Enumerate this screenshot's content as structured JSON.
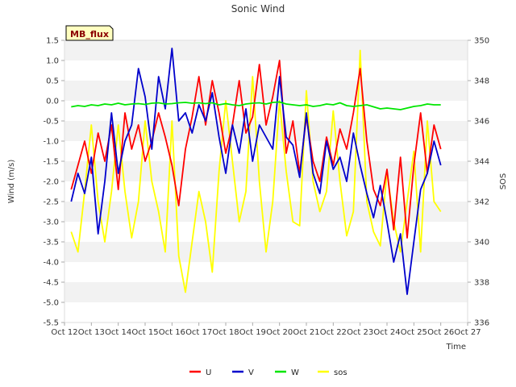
{
  "chart_data": {
    "type": "line",
    "title": "Sonic Wind",
    "badge": "MB_flux",
    "xlabel": "Time",
    "ylabel": "Wind (m/s)",
    "y2label": "SOS",
    "x_ticks": [
      "Oct 12",
      "Oct 13",
      "Oct 14",
      "Oct 15",
      "Oct 16",
      "Oct 17",
      "Oct 18",
      "Oct 19",
      "Oct 20",
      "Oct 21",
      "Oct 22",
      "Oct 23",
      "Oct 24",
      "Oct 25",
      "Oct 26",
      "Oct 27"
    ],
    "y_ticks": [
      "-5.5",
      "-5.0",
      "-4.5",
      "-4.0",
      "-3.5",
      "-3.0",
      "-2.5",
      "-2.0",
      "-1.5",
      "-1.0",
      "-0.5",
      "0.0",
      "0.5",
      "1.0",
      "1.5"
    ],
    "y2_ticks": [
      "336",
      "338",
      "340",
      "342",
      "344",
      "346",
      "348",
      "350"
    ],
    "ylim": [
      -5.5,
      1.5
    ],
    "y2lim": [
      336,
      350
    ],
    "xlim": [
      12,
      27
    ],
    "grid": true,
    "legend_position": "bottom",
    "series": [
      {
        "name": "U",
        "axis": "left",
        "color": "#ff0000",
        "x": [
          12.25,
          12.5,
          12.75,
          13.0,
          13.25,
          13.5,
          13.75,
          14.0,
          14.25,
          14.5,
          14.75,
          15.0,
          15.25,
          15.5,
          15.75,
          16.0,
          16.25,
          16.5,
          16.75,
          17.0,
          17.25,
          17.5,
          17.75,
          18.0,
          18.25,
          18.5,
          18.75,
          19.0,
          19.25,
          19.5,
          19.75,
          20.0,
          20.25,
          20.5,
          20.75,
          21.0,
          21.25,
          21.5,
          21.75,
          22.0,
          22.25,
          22.5,
          22.75,
          23.0,
          23.25,
          23.5,
          23.75,
          24.0,
          24.25,
          24.5,
          24.75,
          25.0,
          25.25,
          25.5,
          25.75,
          26.0
        ],
        "values": [
          -2.2,
          -1.6,
          -1.0,
          -1.8,
          -0.8,
          -1.5,
          -0.6,
          -2.2,
          -0.3,
          -1.2,
          -0.6,
          -1.5,
          -1.0,
          -0.3,
          -0.9,
          -1.6,
          -2.6,
          -1.2,
          -0.4,
          0.6,
          -0.6,
          0.5,
          -0.3,
          -1.3,
          -0.6,
          0.5,
          -0.8,
          -0.4,
          0.9,
          -0.6,
          0.1,
          1.0,
          -1.3,
          -0.5,
          -1.8,
          -0.4,
          -1.5,
          -2.0,
          -0.9,
          -1.6,
          -0.7,
          -1.2,
          -0.3,
          0.8,
          -1.0,
          -2.2,
          -2.6,
          -1.7,
          -3.2,
          -1.4,
          -3.4,
          -1.6,
          -0.3,
          -1.8,
          -0.6,
          -1.2
        ]
      },
      {
        "name": "V",
        "axis": "left",
        "color": "#0000cc",
        "x": [
          12.25,
          12.5,
          12.75,
          13.0,
          13.25,
          13.5,
          13.75,
          14.0,
          14.25,
          14.5,
          14.75,
          15.0,
          15.25,
          15.5,
          15.75,
          16.0,
          16.25,
          16.5,
          16.75,
          17.0,
          17.25,
          17.5,
          17.75,
          18.0,
          18.25,
          18.5,
          18.75,
          19.0,
          19.25,
          19.5,
          19.75,
          20.0,
          20.25,
          20.5,
          20.75,
          21.0,
          21.25,
          21.5,
          21.75,
          22.0,
          22.25,
          22.5,
          22.75,
          23.0,
          23.25,
          23.5,
          23.75,
          24.0,
          24.25,
          24.5,
          24.75,
          25.0,
          25.25,
          25.5,
          25.75,
          26.0
        ],
        "values": [
          -2.5,
          -1.8,
          -2.3,
          -1.4,
          -3.3,
          -2.0,
          -0.3,
          -1.8,
          -1.0,
          -0.6,
          0.8,
          0.1,
          -1.2,
          0.6,
          -0.2,
          1.3,
          -0.5,
          -0.3,
          -0.8,
          -0.1,
          -0.5,
          0.2,
          -0.9,
          -1.8,
          -0.6,
          -1.3,
          -0.2,
          -1.5,
          -0.6,
          -0.9,
          -1.2,
          0.6,
          -0.9,
          -1.1,
          -1.9,
          -0.3,
          -1.8,
          -2.3,
          -1.0,
          -1.7,
          -1.4,
          -2.0,
          -0.8,
          -1.6,
          -2.3,
          -2.9,
          -2.1,
          -3.0,
          -4.0,
          -3.3,
          -4.8,
          -3.5,
          -2.2,
          -1.8,
          -1.0,
          -1.6
        ]
      },
      {
        "name": "W",
        "axis": "left",
        "color": "#00e600",
        "x": [
          12.25,
          12.5,
          12.75,
          13.0,
          13.25,
          13.5,
          13.75,
          14.0,
          14.25,
          14.5,
          14.75,
          15.0,
          15.25,
          15.5,
          15.75,
          16.0,
          16.25,
          16.5,
          16.75,
          17.0,
          17.25,
          17.5,
          17.75,
          18.0,
          18.25,
          18.5,
          18.75,
          19.0,
          19.25,
          19.5,
          19.75,
          20.0,
          20.25,
          20.5,
          20.75,
          21.0,
          21.25,
          21.5,
          21.75,
          22.0,
          22.25,
          22.5,
          22.75,
          23.0,
          23.25,
          23.5,
          23.75,
          24.0,
          24.25,
          24.5,
          24.75,
          25.0,
          25.25,
          25.5,
          25.75,
          26.0
        ],
        "values": [
          -0.15,
          -0.12,
          -0.14,
          -0.1,
          -0.12,
          -0.08,
          -0.1,
          -0.06,
          -0.1,
          -0.08,
          -0.07,
          -0.09,
          -0.06,
          -0.05,
          -0.08,
          -0.07,
          -0.05,
          -0.04,
          -0.06,
          -0.05,
          -0.07,
          -0.05,
          -0.1,
          -0.07,
          -0.1,
          -0.12,
          -0.08,
          -0.06,
          -0.05,
          -0.08,
          -0.04,
          -0.03,
          -0.08,
          -0.1,
          -0.12,
          -0.1,
          -0.14,
          -0.12,
          -0.08,
          -0.1,
          -0.05,
          -0.12,
          -0.14,
          -0.12,
          -0.1,
          -0.15,
          -0.2,
          -0.18,
          -0.2,
          -0.22,
          -0.18,
          -0.14,
          -0.12,
          -0.08,
          -0.1,
          -0.1
        ]
      },
      {
        "name": "sos",
        "axis": "right",
        "color": "#ffff00",
        "x": [
          12.25,
          12.5,
          12.75,
          13.0,
          13.25,
          13.5,
          13.75,
          14.0,
          14.25,
          14.5,
          14.75,
          15.0,
          15.25,
          15.5,
          15.75,
          16.0,
          16.25,
          16.5,
          16.75,
          17.0,
          17.25,
          17.5,
          17.75,
          18.0,
          18.25,
          18.5,
          18.75,
          19.0,
          19.25,
          19.5,
          19.75,
          20.0,
          20.25,
          20.5,
          20.75,
          21.0,
          21.25,
          21.5,
          21.75,
          22.0,
          22.25,
          22.5,
          22.75,
          23.0,
          23.25,
          23.5,
          23.75,
          24.0,
          24.25,
          24.5,
          24.75,
          25.0,
          25.25,
          25.5,
          25.75,
          26.0
        ],
        "values": [
          340.5,
          339.5,
          342.5,
          345.8,
          342.0,
          340.0,
          342.5,
          345.8,
          342.5,
          340.2,
          342.0,
          346.0,
          343.0,
          341.5,
          339.5,
          346.0,
          339.3,
          337.5,
          340.0,
          342.5,
          341.0,
          338.5,
          343.5,
          347.0,
          344.0,
          341.0,
          342.5,
          348.2,
          343.0,
          339.5,
          342.0,
          347.0,
          343.5,
          341.0,
          340.8,
          347.5,
          343.0,
          341.5,
          342.5,
          346.5,
          343.0,
          340.3,
          341.5,
          349.5,
          342.0,
          340.5,
          339.8,
          343.5,
          341.0,
          339.5,
          342.0,
          344.5,
          339.5,
          346.0,
          342.0,
          341.5
        ]
      }
    ]
  }
}
